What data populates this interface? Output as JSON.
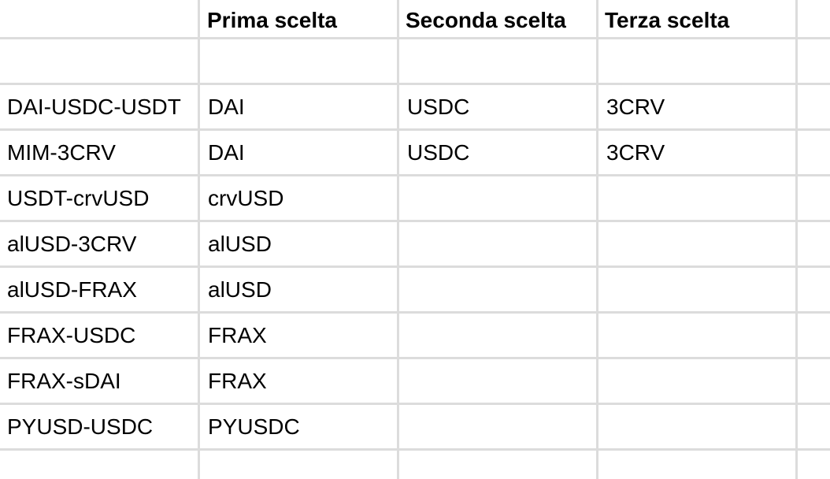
{
  "spreadsheet": {
    "headers": [
      "",
      "Prima scelta",
      "Seconda scelta",
      "Terza scelta",
      ""
    ],
    "rows": [
      [
        "",
        "",
        "",
        "",
        ""
      ],
      [
        "DAI-USDC-USDT",
        "DAI",
        "USDC",
        "3CRV",
        ""
      ],
      [
        "MIM-3CRV",
        "DAI",
        "USDC",
        "3CRV",
        ""
      ],
      [
        "USDT-crvUSD",
        "crvUSD",
        "",
        "",
        ""
      ],
      [
        "alUSD-3CRV",
        "alUSD",
        "",
        "",
        ""
      ],
      [
        "alUSD-FRAX",
        "alUSD",
        "",
        "",
        ""
      ],
      [
        "FRAX-USDC",
        "FRAX",
        "",
        "",
        ""
      ],
      [
        "FRAX-sDAI",
        "FRAX",
        "",
        "",
        ""
      ],
      [
        "PYUSD-USDC",
        "PYUSDC",
        "",
        "",
        ""
      ],
      [
        "",
        "",
        "",
        "",
        ""
      ]
    ]
  },
  "colors": {
    "gridline": "#dcdcdc",
    "text": "#000000",
    "background": "#ffffff"
  }
}
